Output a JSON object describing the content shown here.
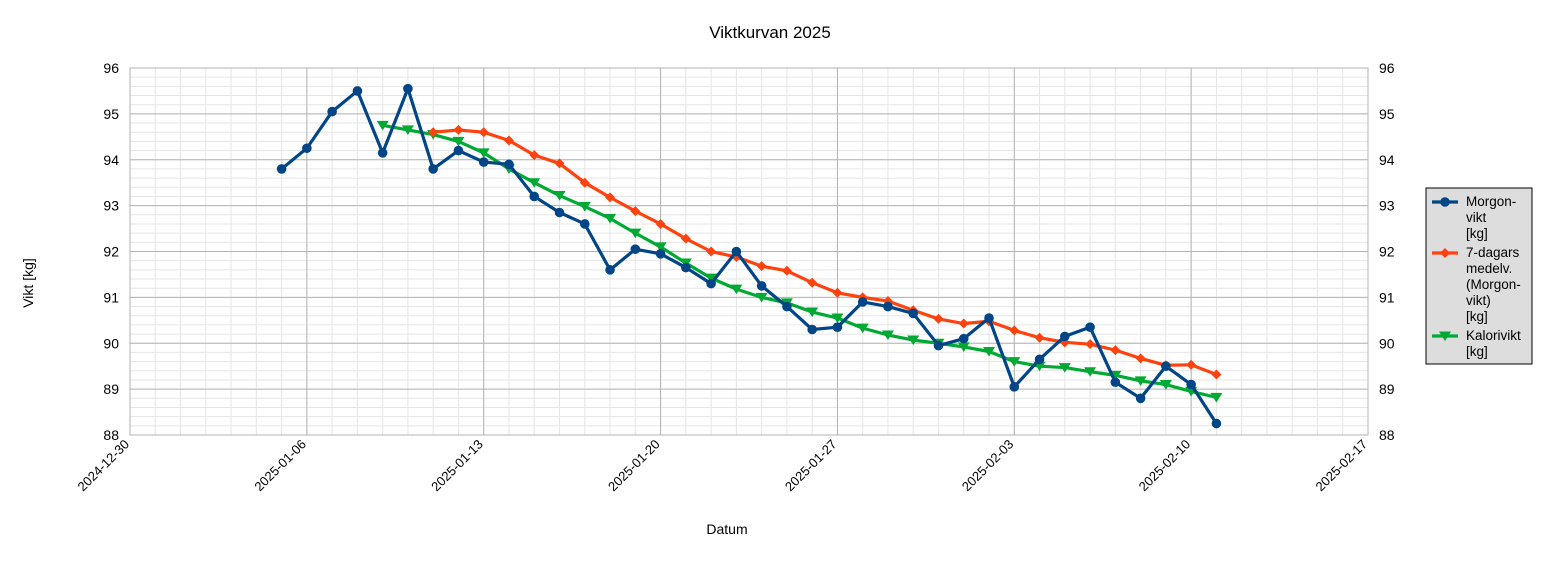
{
  "chart_data": {
    "type": "line",
    "title": "Viktkurvan 2025",
    "xlabel": "Datum",
    "ylabel": "Vikt [kg]",
    "ylim": [
      88,
      96
    ],
    "y_ticks": [
      "88",
      "89",
      "90",
      "91",
      "92",
      "93",
      "94",
      "95",
      "96"
    ],
    "xlim": [
      "2024-12-30",
      "2025-02-17"
    ],
    "x_ticks": [
      "2024-12-30",
      "2025-01-06",
      "2025-01-13",
      "2025-01-20",
      "2025-01-27",
      "2025-02-03",
      "2025-02-10",
      "2025-02-17"
    ],
    "grid": true,
    "legend_position": "right",
    "series": [
      {
        "name": "Morgon-\nvikt\n[kg]",
        "color": "#004586",
        "marker": "circle",
        "x": [
          "2025-01-05",
          "2025-01-06",
          "2025-01-07",
          "2025-01-08",
          "2025-01-09",
          "2025-01-10",
          "2025-01-11",
          "2025-01-12",
          "2025-01-13",
          "2025-01-14",
          "2025-01-15",
          "2025-01-16",
          "2025-01-17",
          "2025-01-18",
          "2025-01-19",
          "2025-01-20",
          "2025-01-21",
          "2025-01-22",
          "2025-01-23",
          "2025-01-24",
          "2025-01-25",
          "2025-01-26",
          "2025-01-27",
          "2025-01-28",
          "2025-01-29",
          "2025-01-30",
          "2025-01-31",
          "2025-02-01",
          "2025-02-02",
          "2025-02-03",
          "2025-02-04",
          "2025-02-05",
          "2025-02-06",
          "2025-02-07",
          "2025-02-08",
          "2025-02-09",
          "2025-02-10",
          "2025-02-11"
        ],
        "values": [
          93.8,
          94.25,
          95.05,
          95.5,
          94.15,
          95.55,
          93.8,
          94.2,
          93.95,
          93.9,
          93.2,
          92.85,
          92.6,
          91.6,
          92.05,
          91.95,
          91.65,
          91.3,
          92.0,
          91.25,
          90.8,
          90.3,
          90.35,
          90.9,
          90.8,
          90.65,
          89.95,
          90.1,
          90.55,
          89.05,
          89.65,
          90.15,
          90.35,
          89.15,
          88.8,
          89.5,
          89.1,
          88.25
        ]
      },
      {
        "name": "7-dagars\nmedelv.\n(Morgon-\nvikt)\n[kg]",
        "color": "#ff420e",
        "marker": "diamond",
        "x": [
          "2025-01-11",
          "2025-01-12",
          "2025-01-13",
          "2025-01-14",
          "2025-01-15",
          "2025-01-16",
          "2025-01-17",
          "2025-01-18",
          "2025-01-19",
          "2025-01-20",
          "2025-01-21",
          "2025-01-22",
          "2025-01-23",
          "2025-01-24",
          "2025-01-25",
          "2025-01-26",
          "2025-01-27",
          "2025-01-28",
          "2025-01-29",
          "2025-01-30",
          "2025-01-31",
          "2025-02-01",
          "2025-02-02",
          "2025-02-03",
          "2025-02-04",
          "2025-02-05",
          "2025-02-06",
          "2025-02-07",
          "2025-02-08",
          "2025-02-09",
          "2025-02-10",
          "2025-02-11"
        ],
        "values": [
          94.6,
          94.65,
          94.6,
          94.42,
          94.1,
          93.92,
          93.5,
          93.18,
          92.88,
          92.6,
          92.28,
          92.0,
          91.88,
          91.68,
          91.58,
          91.32,
          91.1,
          91.0,
          90.92,
          90.72,
          90.53,
          90.43,
          90.48,
          90.28,
          90.12,
          90.02,
          89.98,
          89.85,
          89.67,
          89.52,
          89.53,
          89.32
        ]
      },
      {
        "name": "Kalorivikt\n[kg]",
        "color": "#00a933",
        "marker": "triangle-down",
        "x": [
          "2025-01-09",
          "2025-01-10",
          "2025-01-11",
          "2025-01-12",
          "2025-01-13",
          "2025-01-14",
          "2025-01-15",
          "2025-01-16",
          "2025-01-17",
          "2025-01-18",
          "2025-01-19",
          "2025-01-20",
          "2025-01-21",
          "2025-01-22",
          "2025-01-23",
          "2025-01-24",
          "2025-01-25",
          "2025-01-26",
          "2025-01-27",
          "2025-01-28",
          "2025-01-29",
          "2025-01-30",
          "2025-01-31",
          "2025-02-01",
          "2025-02-02",
          "2025-02-03",
          "2025-02-04",
          "2025-02-05",
          "2025-02-06",
          "2025-02-07",
          "2025-02-08",
          "2025-02-09",
          "2025-02-10",
          "2025-02-11"
        ],
        "values": [
          94.75,
          94.65,
          94.55,
          94.4,
          94.15,
          93.8,
          93.5,
          93.22,
          92.98,
          92.72,
          92.4,
          92.1,
          91.75,
          91.42,
          91.18,
          91.0,
          90.88,
          90.68,
          90.55,
          90.33,
          90.18,
          90.07,
          90.0,
          89.92,
          89.82,
          89.6,
          89.5,
          89.47,
          89.38,
          89.3,
          89.18,
          89.1,
          88.95,
          88.82
        ]
      }
    ]
  }
}
